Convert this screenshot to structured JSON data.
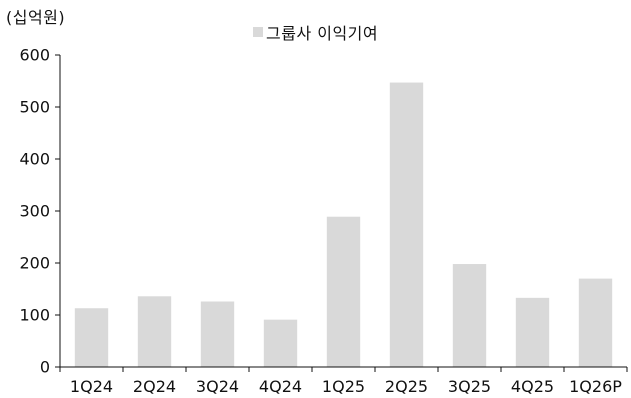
{
  "chart_data": {
    "type": "bar",
    "unit_label": "(십억원)",
    "categories": [
      "1Q24",
      "2Q24",
      "3Q24",
      "4Q24",
      "1Q25",
      "2Q25",
      "3Q25",
      "4Q25",
      "1Q26P"
    ],
    "series": [
      {
        "name": "그룹사 이익기여",
        "values": [
          113,
          136,
          126,
          91,
          289,
          547,
          198,
          133,
          170
        ],
        "color": "#d9d9d9"
      }
    ],
    "yticks": [
      0,
      100,
      200,
      300,
      400,
      500,
      600
    ],
    "ylim": [
      0,
      600
    ],
    "grid": false,
    "legend_position": "top-center",
    "title": "",
    "xlabel": "",
    "ylabel": ""
  }
}
